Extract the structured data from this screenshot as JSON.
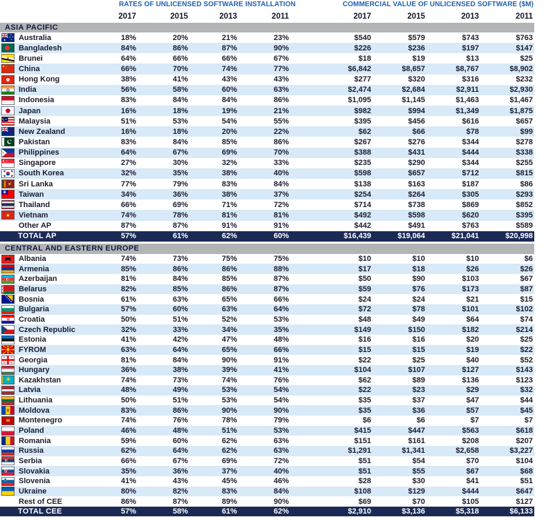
{
  "header": {
    "rates_title": "RATES OF UNLICENSED SOFTWARE INSTALLATION",
    "value_title": "COMMERCIAL VALUE OF UNLICENSED SOFTWARE ($M)",
    "years": [
      "2017",
      "2015",
      "2013",
      "2011"
    ]
  },
  "colors": {
    "title_blue": "#2260A8",
    "row_stripe": "#D8E9F8",
    "section_bg": "#B2B4B6",
    "total_bg": "#1B2A55",
    "text_dark": "#1B1C2E"
  },
  "sections": [
    {
      "title": "ASIA PACIFIC",
      "rows": [
        {
          "country": "Australia",
          "flag": "australia",
          "rates": [
            "18%",
            "20%",
            "21%",
            "23%"
          ],
          "values": [
            "$540",
            "$579",
            "$743",
            "$763"
          ]
        },
        {
          "country": "Bangladesh",
          "flag": "bangladesh",
          "rates": [
            "84%",
            "86%",
            "87%",
            "90%"
          ],
          "values": [
            "$226",
            "$236",
            "$197",
            "$147"
          ]
        },
        {
          "country": "Brunei",
          "flag": "brunei",
          "rates": [
            "64%",
            "66%",
            "66%",
            "67%"
          ],
          "values": [
            "$18",
            "$19",
            "$13",
            "$25"
          ]
        },
        {
          "country": "China",
          "flag": "china",
          "rates": [
            "66%",
            "70%",
            "74%",
            "77%"
          ],
          "values": [
            "$6,842",
            "$8,657",
            "$8,767",
            "$8,902"
          ]
        },
        {
          "country": "Hong Kong",
          "flag": "hongkong",
          "rates": [
            "38%",
            "41%",
            "43%",
            "43%"
          ],
          "values": [
            "$277",
            "$320",
            "$316",
            "$232"
          ]
        },
        {
          "country": "India",
          "flag": "india",
          "rates": [
            "56%",
            "58%",
            "60%",
            "63%"
          ],
          "values": [
            "$2,474",
            "$2,684",
            "$2,911",
            "$2,930"
          ]
        },
        {
          "country": "Indonesia",
          "flag": "indonesia",
          "rates": [
            "83%",
            "84%",
            "84%",
            "86%"
          ],
          "values": [
            "$1,095",
            "$1,145",
            "$1,463",
            "$1,467"
          ]
        },
        {
          "country": "Japan",
          "flag": "japan",
          "rates": [
            "16%",
            "18%",
            "19%",
            "21%"
          ],
          "values": [
            "$982",
            "$994",
            "$1,349",
            "$1,875"
          ]
        },
        {
          "country": "Malaysia",
          "flag": "malaysia",
          "rates": [
            "51%",
            "53%",
            "54%",
            "55%"
          ],
          "values": [
            "$395",
            "$456",
            "$616",
            "$657"
          ]
        },
        {
          "country": "New Zealand",
          "flag": "newzealand",
          "rates": [
            "16%",
            "18%",
            "20%",
            "22%"
          ],
          "values": [
            "$62",
            "$66",
            "$78",
            "$99"
          ]
        },
        {
          "country": "Pakistan",
          "flag": "pakistan",
          "rates": [
            "83%",
            "84%",
            "85%",
            "86%"
          ],
          "values": [
            "$267",
            "$276",
            "$344",
            "$278"
          ]
        },
        {
          "country": "Philippines",
          "flag": "philippines",
          "rates": [
            "64%",
            "67%",
            "69%",
            "70%"
          ],
          "values": [
            "$388",
            "$431",
            "$444",
            "$338"
          ]
        },
        {
          "country": "Singapore",
          "flag": "singapore",
          "rates": [
            "27%",
            "30%",
            "32%",
            "33%"
          ],
          "values": [
            "$235",
            "$290",
            "$344",
            "$255"
          ]
        },
        {
          "country": "South Korea",
          "flag": "southkorea",
          "rates": [
            "32%",
            "35%",
            "38%",
            "40%"
          ],
          "values": [
            "$598",
            "$657",
            "$712",
            "$815"
          ]
        },
        {
          "country": "Sri Lanka",
          "flag": "srilanka",
          "rates": [
            "77%",
            "79%",
            "83%",
            "84%"
          ],
          "values": [
            "$138",
            "$163",
            "$187",
            "$86"
          ]
        },
        {
          "country": "Taiwan",
          "flag": "taiwan",
          "rates": [
            "34%",
            "36%",
            "38%",
            "37%"
          ],
          "values": [
            "$254",
            "$264",
            "$305",
            "$293"
          ]
        },
        {
          "country": "Thailand",
          "flag": "thailand",
          "rates": [
            "66%",
            "69%",
            "71%",
            "72%"
          ],
          "values": [
            "$714",
            "$738",
            "$869",
            "$852"
          ]
        },
        {
          "country": "Vietnam",
          "flag": "vietnam",
          "rates": [
            "74%",
            "78%",
            "81%",
            "81%"
          ],
          "values": [
            "$492",
            "$598",
            "$620",
            "$395"
          ]
        },
        {
          "country": "Other AP",
          "flag": null,
          "rates": [
            "87%",
            "87%",
            "91%",
            "91%"
          ],
          "values": [
            "$442",
            "$491",
            "$763",
            "$589"
          ]
        }
      ],
      "total": {
        "label": "TOTAL AP",
        "rates": [
          "57%",
          "61%",
          "62%",
          "60%"
        ],
        "values": [
          "$16,439",
          "$19,064",
          "$21,041",
          "$20,998"
        ]
      }
    },
    {
      "title": "CENTRAL AND EASTERN EUROPE",
      "rows": [
        {
          "country": "Albania",
          "flag": "albania",
          "rates": [
            "74%",
            "73%",
            "75%",
            "75%"
          ],
          "values": [
            "$10",
            "$10",
            "$10",
            "$6"
          ]
        },
        {
          "country": "Armenia",
          "flag": "armenia",
          "rates": [
            "85%",
            "86%",
            "86%",
            "88%"
          ],
          "values": [
            "$17",
            "$18",
            "$26",
            "$26"
          ]
        },
        {
          "country": "Azerbaijan",
          "flag": "azerbaijan",
          "rates": [
            "81%",
            "84%",
            "85%",
            "87%"
          ],
          "values": [
            "$50",
            "$90",
            "$103",
            "$67"
          ]
        },
        {
          "country": "Belarus",
          "flag": "belarus",
          "rates": [
            "82%",
            "85%",
            "86%",
            "87%"
          ],
          "values": [
            "$59",
            "$76",
            "$173",
            "$87"
          ]
        },
        {
          "country": "Bosnia",
          "flag": "bosnia",
          "rates": [
            "61%",
            "63%",
            "65%",
            "66%"
          ],
          "values": [
            "$24",
            "$24",
            "$21",
            "$15"
          ]
        },
        {
          "country": "Bulgaria",
          "flag": "bulgaria",
          "rates": [
            "57%",
            "60%",
            "63%",
            "64%"
          ],
          "values": [
            "$72",
            "$78",
            "$101",
            "$102"
          ]
        },
        {
          "country": "Croatia",
          "flag": "croatia",
          "rates": [
            "50%",
            "51%",
            "52%",
            "53%"
          ],
          "values": [
            "$48",
            "$49",
            "$64",
            "$74"
          ]
        },
        {
          "country": "Czech Republic",
          "flag": "czech",
          "rates": [
            "32%",
            "33%",
            "34%",
            "35%"
          ],
          "values": [
            "$149",
            "$150",
            "$182",
            "$214"
          ]
        },
        {
          "country": "Estonia",
          "flag": "estonia",
          "rates": [
            "41%",
            "42%",
            "47%",
            "48%"
          ],
          "values": [
            "$16",
            "$16",
            "$20",
            "$25"
          ]
        },
        {
          "country": "FYROM",
          "flag": "fyrom",
          "rates": [
            "63%",
            "64%",
            "65%",
            "66%"
          ],
          "values": [
            "$15",
            "$15",
            "$19",
            "$22"
          ]
        },
        {
          "country": "Georgia",
          "flag": "georgia",
          "rates": [
            "81%",
            "84%",
            "90%",
            "91%"
          ],
          "values": [
            "$22",
            "$25",
            "$40",
            "$52"
          ]
        },
        {
          "country": "Hungary",
          "flag": "hungary",
          "rates": [
            "36%",
            "38%",
            "39%",
            "41%"
          ],
          "values": [
            "$104",
            "$107",
            "$127",
            "$143"
          ]
        },
        {
          "country": "Kazakhstan",
          "flag": "kazakhstan",
          "rates": [
            "74%",
            "73%",
            "74%",
            "76%"
          ],
          "values": [
            "$62",
            "$89",
            "$136",
            "$123"
          ]
        },
        {
          "country": "Latvia",
          "flag": "latvia",
          "rates": [
            "48%",
            "49%",
            "53%",
            "54%"
          ],
          "values": [
            "$22",
            "$23",
            "$29",
            "$32"
          ]
        },
        {
          "country": "Lithuania",
          "flag": "lithuania",
          "rates": [
            "50%",
            "51%",
            "53%",
            "54%"
          ],
          "values": [
            "$35",
            "$37",
            "$47",
            "$44"
          ]
        },
        {
          "country": "Moldova",
          "flag": "moldova",
          "rates": [
            "83%",
            "86%",
            "90%",
            "90%"
          ],
          "values": [
            "$35",
            "$36",
            "$57",
            "$45"
          ]
        },
        {
          "country": "Montenegro",
          "flag": "montenegro",
          "rates": [
            "74%",
            "76%",
            "78%",
            "79%"
          ],
          "values": [
            "$6",
            "$6",
            "$7",
            "$7"
          ]
        },
        {
          "country": "Poland",
          "flag": "poland",
          "rates": [
            "46%",
            "48%",
            "51%",
            "53%"
          ],
          "values": [
            "$415",
            "$447",
            "$563",
            "$618"
          ]
        },
        {
          "country": "Romania",
          "flag": "romania",
          "rates": [
            "59%",
            "60%",
            "62%",
            "63%"
          ],
          "values": [
            "$151",
            "$161",
            "$208",
            "$207"
          ]
        },
        {
          "country": "Russia",
          "flag": "russia",
          "rates": [
            "62%",
            "64%",
            "62%",
            "63%"
          ],
          "values": [
            "$1,291",
            "$1,341",
            "$2,658",
            "$3,227"
          ]
        },
        {
          "country": "Serbia",
          "flag": "serbia",
          "rates": [
            "66%",
            "67%",
            "69%",
            "72%"
          ],
          "values": [
            "$51",
            "$54",
            "$70",
            "$104"
          ]
        },
        {
          "country": "Slovakia",
          "flag": "slovakia",
          "rates": [
            "35%",
            "36%",
            "37%",
            "40%"
          ],
          "values": [
            "$51",
            "$55",
            "$67",
            "$68"
          ]
        },
        {
          "country": "Slovenia",
          "flag": "slovenia",
          "rates": [
            "41%",
            "43%",
            "45%",
            "46%"
          ],
          "values": [
            "$28",
            "$30",
            "$41",
            "$51"
          ]
        },
        {
          "country": "Ukraine",
          "flag": "ukraine",
          "rates": [
            "80%",
            "82%",
            "83%",
            "84%"
          ],
          "values": [
            "$108",
            "$129",
            "$444",
            "$647"
          ]
        },
        {
          "country": "Rest of CEE",
          "flag": null,
          "rates": [
            "86%",
            "87%",
            "89%",
            "90%"
          ],
          "values": [
            "$69",
            "$70",
            "$105",
            "$127"
          ]
        }
      ],
      "total": {
        "label": "TOTAL CEE",
        "rates": [
          "57%",
          "58%",
          "61%",
          "62%"
        ],
        "values": [
          "$2,910",
          "$3,136",
          "$5,318",
          "$6,133"
        ]
      }
    }
  ]
}
